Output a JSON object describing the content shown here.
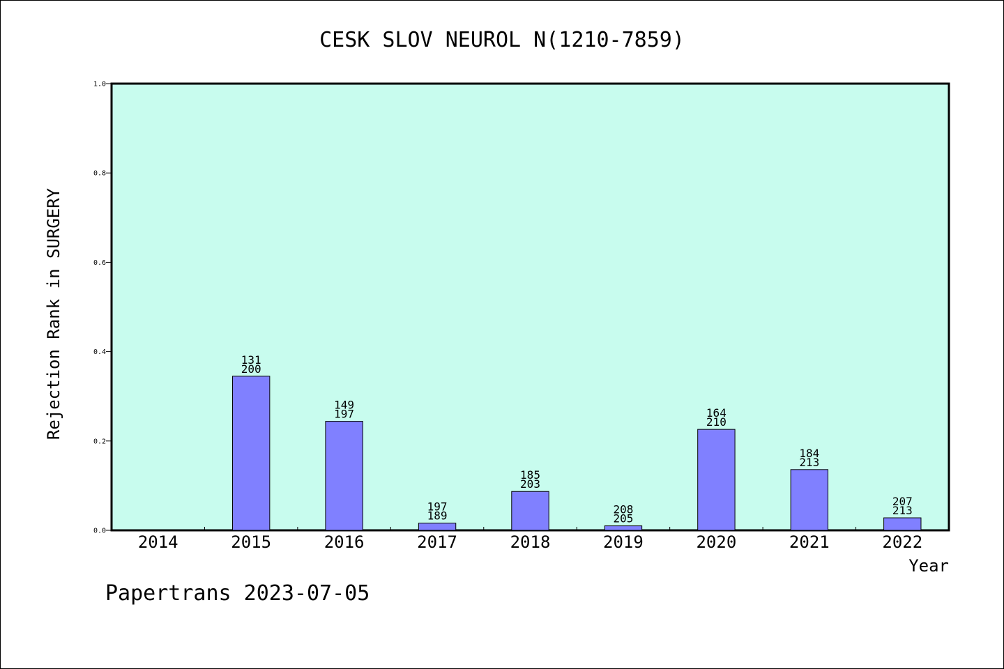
{
  "chart_data": {
    "type": "bar",
    "title": "CESK SLOV NEUROL N(1210-7859)",
    "xlabel": "Year",
    "ylabel": "Rejection Rank in SURGERY",
    "ylim": [
      0,
      1.0
    ],
    "yticks": [
      "0.0",
      "0.2",
      "0.4",
      "0.6",
      "0.8",
      "1.0"
    ],
    "categories": [
      "2014",
      "2015",
      "2016",
      "2017",
      "2018",
      "2019",
      "2020",
      "2021",
      "2022"
    ],
    "values": [
      null,
      0.345,
      0.244,
      0.016,
      0.087,
      0.01,
      0.226,
      0.136,
      0.028
    ],
    "labels_top": [
      "",
      "131",
      "149",
      "197",
      "185",
      "208",
      "164",
      "184",
      "207"
    ],
    "labels_bottom": [
      "",
      "200",
      "197",
      "189",
      "203",
      "205",
      "210",
      "213",
      "213"
    ],
    "grid": false,
    "colors": {
      "plot_background": "#c8fcee",
      "bar_fill": "#8080ff",
      "bar_stroke": "#000000"
    }
  },
  "footer": "Papertrans 2023-07-05"
}
